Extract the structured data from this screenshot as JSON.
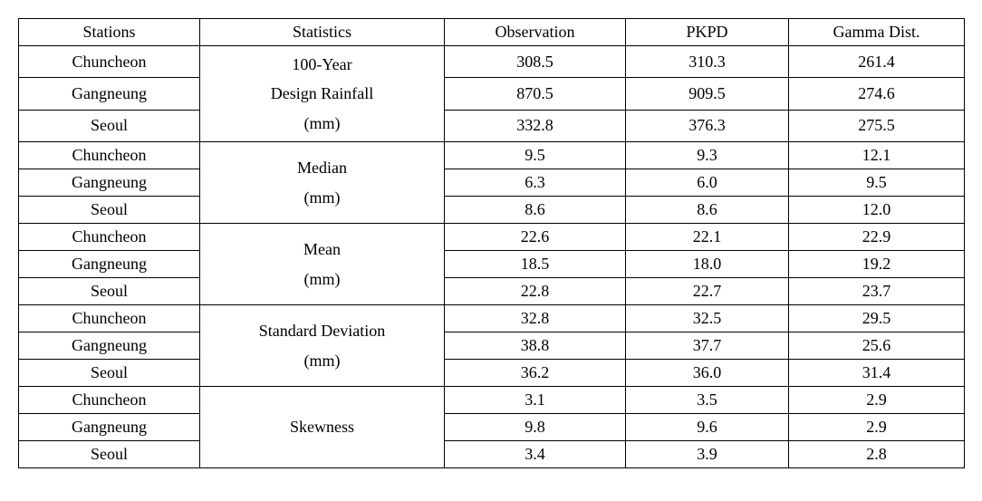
{
  "table": {
    "columns": [
      "Stations",
      "Statistics",
      "Observation",
      "PKPD",
      "Gamma Dist."
    ],
    "stations_cycle": [
      "Chuncheon",
      "Gangneung",
      "Seoul"
    ],
    "groups": [
      {
        "stat_lines": [
          "100-Year",
          "Design Rainfall",
          "(mm)"
        ],
        "rows": [
          {
            "obs": "308.5",
            "pkpd": "310.3",
            "gamma": "261.4"
          },
          {
            "obs": "870.5",
            "pkpd": "909.5",
            "gamma": "274.6"
          },
          {
            "obs": "332.8",
            "pkpd": "376.3",
            "gamma": "275.5"
          }
        ]
      },
      {
        "stat_lines": [
          "Median",
          "(mm)"
        ],
        "rows": [
          {
            "obs": "9.5",
            "pkpd": "9.3",
            "gamma": "12.1"
          },
          {
            "obs": "6.3",
            "pkpd": "6.0",
            "gamma": "9.5"
          },
          {
            "obs": "8.6",
            "pkpd": "8.6",
            "gamma": "12.0"
          }
        ]
      },
      {
        "stat_lines": [
          "Mean",
          "(mm)"
        ],
        "rows": [
          {
            "obs": "22.6",
            "pkpd": "22.1",
            "gamma": "22.9"
          },
          {
            "obs": "18.5",
            "pkpd": "18.0",
            "gamma": "19.2"
          },
          {
            "obs": "22.8",
            "pkpd": "22.7",
            "gamma": "23.7"
          }
        ]
      },
      {
        "stat_lines": [
          "Standard Deviation",
          "(mm)"
        ],
        "rows": [
          {
            "obs": "32.8",
            "pkpd": "32.5",
            "gamma": "29.5"
          },
          {
            "obs": "38.8",
            "pkpd": "37.7",
            "gamma": "25.6"
          },
          {
            "obs": "36.2",
            "pkpd": "36.0",
            "gamma": "31.4"
          }
        ]
      },
      {
        "stat_lines": [
          "Skewness"
        ],
        "rows": [
          {
            "obs": "3.1",
            "pkpd": "3.5",
            "gamma": "2.9"
          },
          {
            "obs": "9.8",
            "pkpd": "9.6",
            "gamma": "2.9"
          },
          {
            "obs": "3.4",
            "pkpd": "3.9",
            "gamma": "2.8"
          }
        ]
      }
    ],
    "border_color": "#000000",
    "background_color": "#ffffff",
    "font_size_pt": 14
  }
}
